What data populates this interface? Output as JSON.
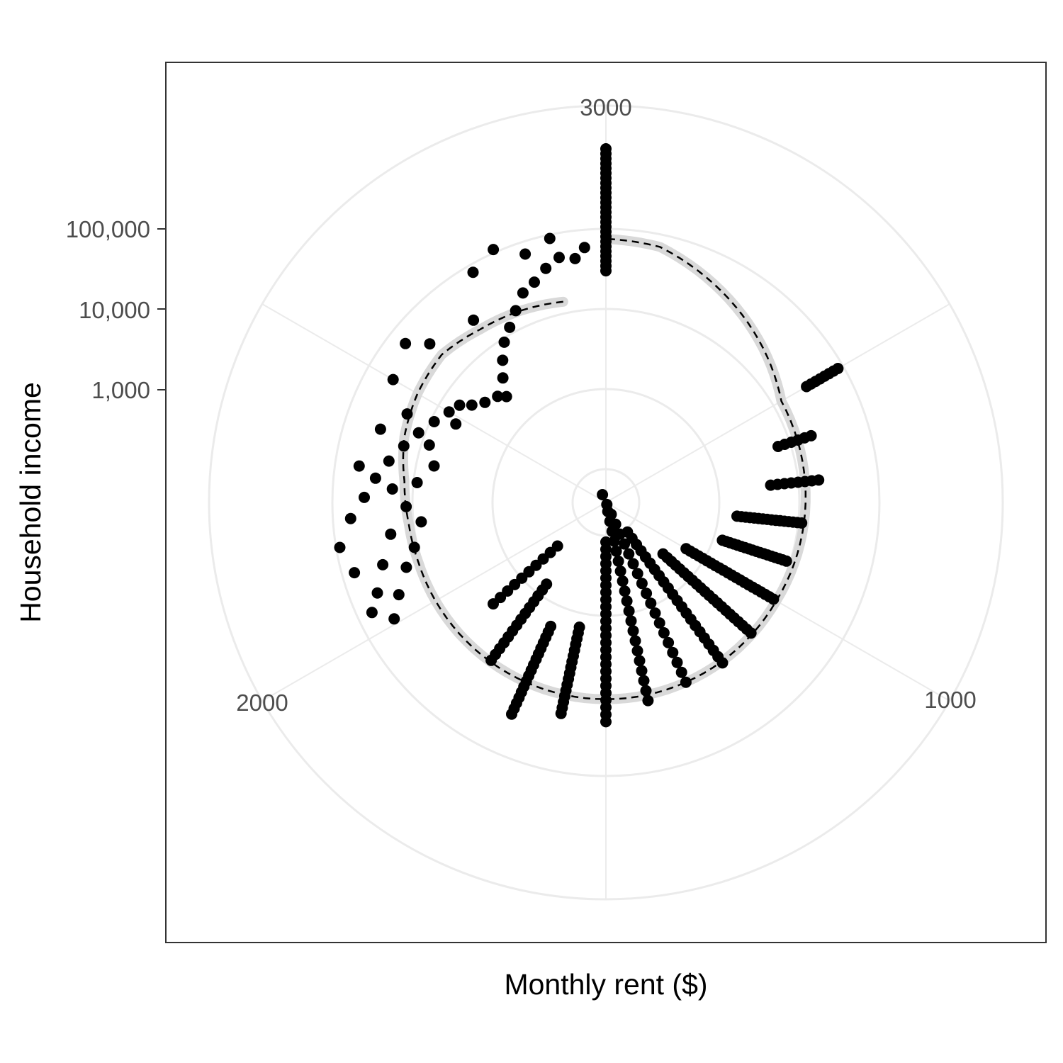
{
  "chart_data": {
    "type": "scatter",
    "coordinate_system": "polar",
    "title": "",
    "xlabel": "Monthly rent ($)",
    "ylabel": "Household income",
    "theta_axis": {
      "variable": "Monthly rent ($)",
      "range": [
        0,
        3000
      ],
      "ticks": [
        1000,
        2000,
        3000
      ],
      "tick_labels": [
        "1000",
        "2000",
        "3000"
      ]
    },
    "radial_axis": {
      "variable": "Household income",
      "scale": "log10",
      "ticks": [
        1000,
        10000,
        100000
      ],
      "tick_labels": [
        "1,000",
        "10,000",
        "100,000"
      ]
    },
    "grid": true,
    "legend": "none",
    "colors": {
      "points": "#000000",
      "smooth_band": "#d9d9d9",
      "smooth_line": "#000000",
      "grid": "#ebebeb",
      "panel_border": "#333333"
    },
    "vertical_clusters": [
      {
        "rent": 3000,
        "income_min": 30000,
        "income_max": 1000000,
        "count": 26
      },
      {
        "rent": 1000,
        "income_min": 130,
        "income_max": 60000,
        "count": 0
      },
      {
        "rent": 1100,
        "income_min": 250,
        "income_max": 3000,
        "count": 10
      },
      {
        "rent": 1200,
        "income_min": 700,
        "income_max": 10500,
        "count": 14
      },
      {
        "rent": 1300,
        "income_min": 1900,
        "income_max": 30000,
        "count": 17
      },
      {
        "rent": 1400,
        "income_min": 1500,
        "income_max": 19000,
        "count": 16
      },
      {
        "rent": 1500,
        "income_min": 120,
        "income_max": 21000,
        "count": 26
      },
      {
        "rent": 1600,
        "income_min": 50,
        "income_max": 13000,
        "count": 20
      },
      {
        "rent": 1700,
        "income_min": 30,
        "income_max": 11000,
        "count": 20
      },
      {
        "rent": 1800,
        "income_min": 110,
        "income_max": 11500,
        "count": 22
      },
      {
        "rent": 1900,
        "income_min": 350,
        "income_max": 10500,
        "count": 22
      },
      {
        "rent": 2000,
        "income_min": 550,
        "income_max": 10000,
        "count": 22
      },
      {
        "rent": 2100,
        "income_min": 1300,
        "income_max": 9000,
        "count": 18
      },
      {
        "rent": 2200,
        "income_min": 1700,
        "income_max": 11000,
        "count": 16
      },
      {
        "rent": 2300,
        "income_min": 4500,
        "income_max": 18000,
        "count": 8
      },
      {
        "rent": 2400,
        "income_min": 7000,
        "income_max": 19000,
        "count": 6
      },
      {
        "rent": 2500,
        "income_min": 30000,
        "income_max": 85000,
        "count": 8
      }
    ],
    "scatter_points": [
      {
        "rent": 450,
        "income": 4500
      },
      {
        "rent": 380,
        "income": 3000
      },
      {
        "rent": 520,
        "income": 5000
      },
      {
        "rent": 600,
        "income": 8000
      },
      {
        "rent": 650,
        "income": 6000
      },
      {
        "rent": 700,
        "income": 9000
      },
      {
        "rent": 760,
        "income": 12000
      },
      {
        "rent": 820,
        "income": 20000
      },
      {
        "rent": 880,
        "income": 30000
      },
      {
        "rent": 930,
        "income": 45000
      },
      {
        "rent": 960,
        "income": 65000
      },
      {
        "rent": 990,
        "income": 40000
      },
      {
        "rent": 880,
        "income": 70000
      },
      {
        "rent": 830,
        "income": 90000
      },
      {
        "rent": 780,
        "income": 60000
      },
      {
        "rent": 740,
        "income": 40000
      },
      {
        "rent": 700,
        "income": 30000
      },
      {
        "rent": 660,
        "income": 22000
      },
      {
        "rent": 620,
        "income": 16000
      },
      {
        "rent": 580,
        "income": 12000
      },
      {
        "rent": 540,
        "income": 9000
      },
      {
        "rent": 500,
        "income": 7000
      },
      {
        "rent": 470,
        "income": 6000
      },
      {
        "rent": 420,
        "income": 3500
      },
      {
        "rent": 360,
        "income": 2500
      },
      {
        "rent": 330,
        "income": 4000
      },
      {
        "rent": 300,
        "income": 6000
      },
      {
        "rent": 270,
        "income": 9000
      },
      {
        "rent": 240,
        "income": 12000
      },
      {
        "rent": 210,
        "income": 17000
      },
      {
        "rent": 180,
        "income": 25000
      },
      {
        "rent": 150,
        "income": 30000
      },
      {
        "rent": 120,
        "income": 40000
      },
      {
        "rent": 90,
        "income": 50000
      },
      {
        "rent": 60,
        "income": 45000
      },
      {
        "rent": 40,
        "income": 60000
      },
      {
        "rent": 600,
        "income": 35000
      },
      {
        "rent": 550,
        "income": 20000
      },
      {
        "rent": 680,
        "income": 50000
      },
      {
        "rent": 720,
        "income": 18000
      },
      {
        "rent": 800,
        "income": 8000
      },
      {
        "rent": 860,
        "income": 11000
      },
      {
        "rent": 900,
        "income": 16000
      },
      {
        "rent": 950,
        "income": 26000
      },
      {
        "rent": 500,
        "income": 45000
      },
      {
        "rent": 430,
        "income": 60000
      },
      {
        "rent": 400,
        "income": 35000
      },
      {
        "rent": 300,
        "income": 25000
      },
      {
        "rent": 250,
        "income": 80000
      },
      {
        "rent": 200,
        "income": 110000
      },
      {
        "rent": 100,
        "income": 90000
      },
      {
        "rent": 150,
        "income": 70000
      }
    ],
    "smooth_line": {
      "style": "dashed",
      "x": [
        100,
        200,
        300,
        400,
        500,
        600,
        700,
        800,
        900,
        1000,
        1500,
        2000,
        2500,
        2900,
        3000
      ],
      "y": [
        14000,
        16000,
        18000,
        22000,
        20000,
        17000,
        13000,
        11500,
        11000,
        11000,
        11000,
        11000,
        13000,
        70000,
        75000
      ]
    }
  }
}
